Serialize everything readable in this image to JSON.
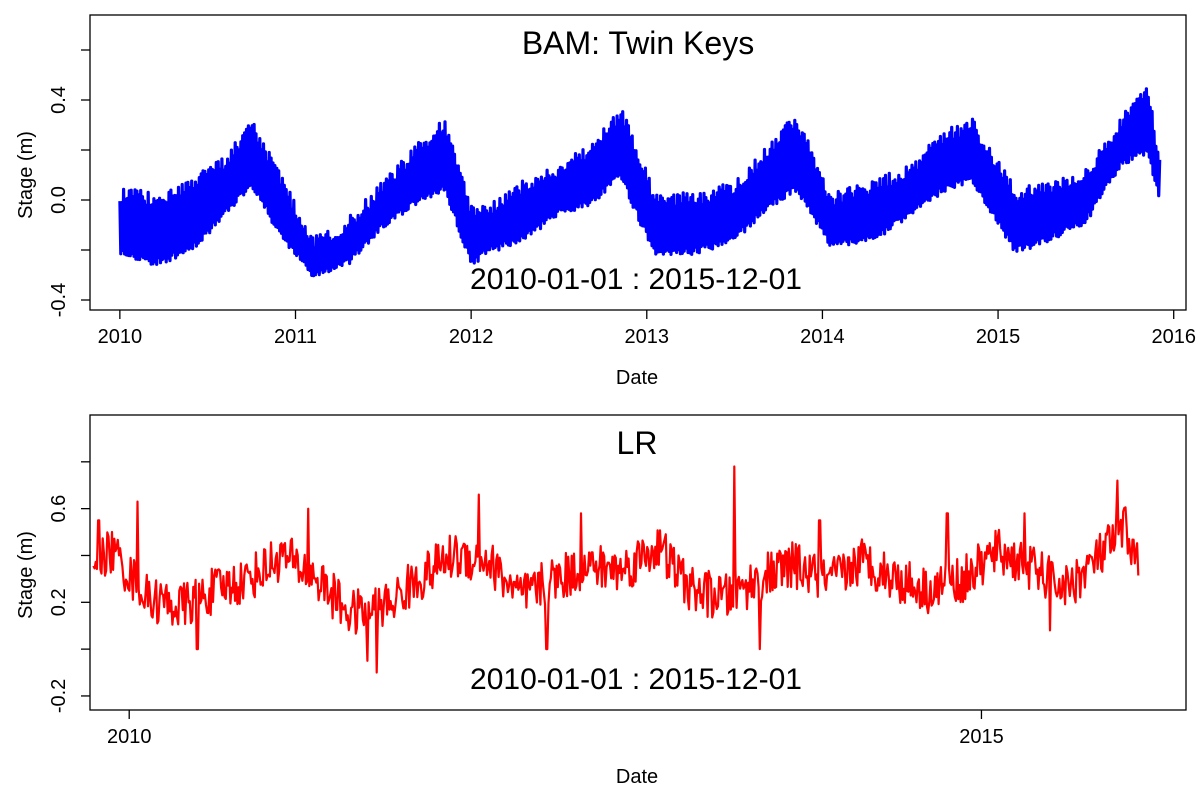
{
  "chart_data": [
    {
      "type": "line",
      "title": "BAM: Twin Keys",
      "range_label": "2010-01-01  :  2015-12-01",
      "xlabel": "Date",
      "ylabel": "Stage (m)",
      "color": "#0000ff",
      "xlim": [
        2009.83,
        2016.07
      ],
      "ylim": [
        -0.44,
        0.74
      ],
      "x_ticks": [
        2010,
        2011,
        2012,
        2013,
        2014,
        2015,
        2016
      ],
      "x_tick_labels": [
        "2010",
        "2011",
        "2012",
        "2013",
        "2014",
        "2015",
        "2016"
      ],
      "y_ticks": [
        -0.4,
        0.0,
        0.4
      ],
      "y_tick_labels": [
        "-0.4",
        "0.0",
        "0.4"
      ],
      "y_minor_ticks": [
        -0.2,
        0.2,
        0.6
      ],
      "series": [
        {
          "x": [
            2010.0,
            2010.2,
            2010.4,
            2010.6,
            2010.75,
            2010.9,
            2011.1,
            2011.3,
            2011.5,
            2011.7,
            2011.85,
            2012.0,
            2012.1,
            2012.3,
            2012.5,
            2012.7,
            2012.85,
            2013.05,
            2013.3,
            2013.5,
            2013.7,
            2013.85,
            2014.05,
            2014.3,
            2014.5,
            2014.7,
            2014.85,
            2015.1,
            2015.3,
            2015.5,
            2015.7,
            2015.85,
            2015.92
          ],
          "upper": [
            0.02,
            0.0,
            0.05,
            0.15,
            0.3,
            0.1,
            -0.18,
            -0.1,
            0.05,
            0.2,
            0.3,
            -0.05,
            -0.05,
            0.05,
            0.12,
            0.2,
            0.35,
            0.0,
            0.0,
            0.05,
            0.2,
            0.32,
            0.0,
            0.05,
            0.12,
            0.25,
            0.3,
            0.02,
            0.05,
            0.1,
            0.3,
            0.45,
            0.15
          ],
          "lower": [
            -0.2,
            -0.25,
            -0.2,
            -0.05,
            0.07,
            -0.12,
            -0.3,
            -0.25,
            -0.1,
            0.0,
            0.05,
            -0.25,
            -0.2,
            -0.15,
            -0.05,
            0.0,
            0.1,
            -0.22,
            -0.2,
            -0.15,
            -0.02,
            0.05,
            -0.18,
            -0.15,
            -0.05,
            0.05,
            0.08,
            -0.2,
            -0.15,
            -0.08,
            0.15,
            0.2,
            0.0
          ]
        }
      ]
    },
    {
      "type": "line",
      "title": "LR",
      "range_label": "2010-01-01  :  2015-12-01",
      "xlabel": "Date",
      "ylabel": "Stage (m)",
      "color": "#ff0000",
      "xlim": [
        2009.77,
        2016.2
      ],
      "ylim": [
        -0.26,
        1.0
      ],
      "x_ticks": [
        2010,
        2015
      ],
      "x_tick_labels": [
        "2010",
        "2015"
      ],
      "y_ticks": [
        -0.2,
        0.2,
        0.6
      ],
      "y_tick_labels": [
        "-0.2",
        "0.2",
        "0.6"
      ],
      "y_minor_ticks": [
        0.0,
        0.4,
        0.8
      ],
      "series": [
        {
          "x": [
            2009.79,
            2009.9,
            2010.1,
            2010.3,
            2010.5,
            2010.7,
            2010.9,
            2011.1,
            2011.3,
            2011.5,
            2011.7,
            2011.9,
            2012.1,
            2012.3,
            2012.5,
            2012.7,
            2012.9,
            2013.1,
            2013.3,
            2013.5,
            2013.7,
            2013.9,
            2014.1,
            2014.3,
            2014.5,
            2014.7,
            2014.9,
            2015.1,
            2015.3,
            2015.5,
            2015.7,
            2015.85,
            2015.92
          ],
          "values": [
            0.38,
            0.42,
            0.22,
            0.18,
            0.25,
            0.3,
            0.4,
            0.3,
            0.15,
            0.18,
            0.3,
            0.4,
            0.38,
            0.22,
            0.3,
            0.35,
            0.34,
            0.44,
            0.25,
            0.22,
            0.3,
            0.36,
            0.28,
            0.38,
            0.3,
            0.25,
            0.3,
            0.42,
            0.34,
            0.26,
            0.4,
            0.52,
            0.35
          ],
          "noise": 0.1,
          "spikes": [
            [
              2009.82,
              0.55
            ],
            [
              2010.05,
              0.63
            ],
            [
              2010.4,
              0.0
            ],
            [
              2011.05,
              0.6
            ],
            [
              2011.4,
              -0.05
            ],
            [
              2011.45,
              -0.1
            ],
            [
              2012.05,
              0.66
            ],
            [
              2012.45,
              0.0
            ],
            [
              2012.65,
              0.58
            ],
            [
              2013.55,
              0.78
            ],
            [
              2013.7,
              0.0
            ],
            [
              2014.05,
              0.55
            ],
            [
              2014.8,
              0.58
            ],
            [
              2015.25,
              0.58
            ],
            [
              2015.4,
              0.08
            ],
            [
              2015.8,
              0.72
            ]
          ]
        }
      ]
    }
  ]
}
